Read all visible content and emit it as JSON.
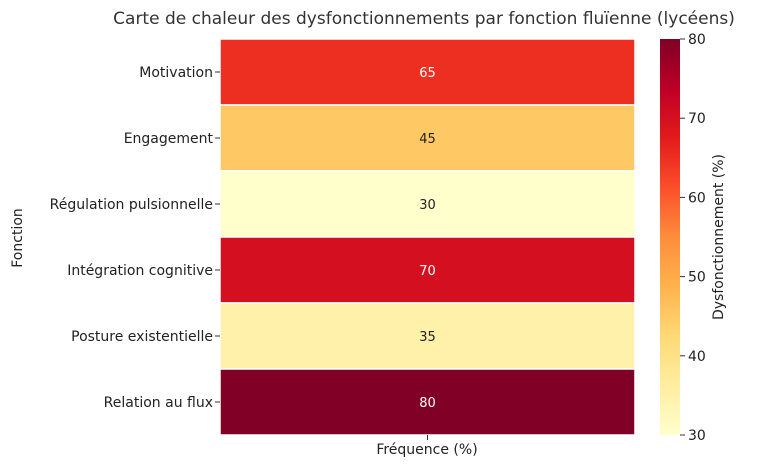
{
  "chart_data": {
    "type": "heatmap",
    "title": "Carte de chaleur des dysfonctionnements par fonction fluïenne (lycéens)",
    "xlabel": "Fréquence (%)",
    "ylabel": "Fonction",
    "rows": [
      "Motivation",
      "Engagement",
      "Régulation pulsionnelle",
      "Intégration cognitive",
      "Posture existentielle",
      "Relation au flux"
    ],
    "values": [
      65,
      45,
      30,
      70,
      35,
      80
    ],
    "colorbar": {
      "label": "Dysfonctionnement (%)",
      "min": 30,
      "max": 80,
      "ticks": [
        "30",
        "40",
        "50",
        "60",
        "70",
        "80"
      ],
      "colormap": "YlOrRd"
    }
  }
}
